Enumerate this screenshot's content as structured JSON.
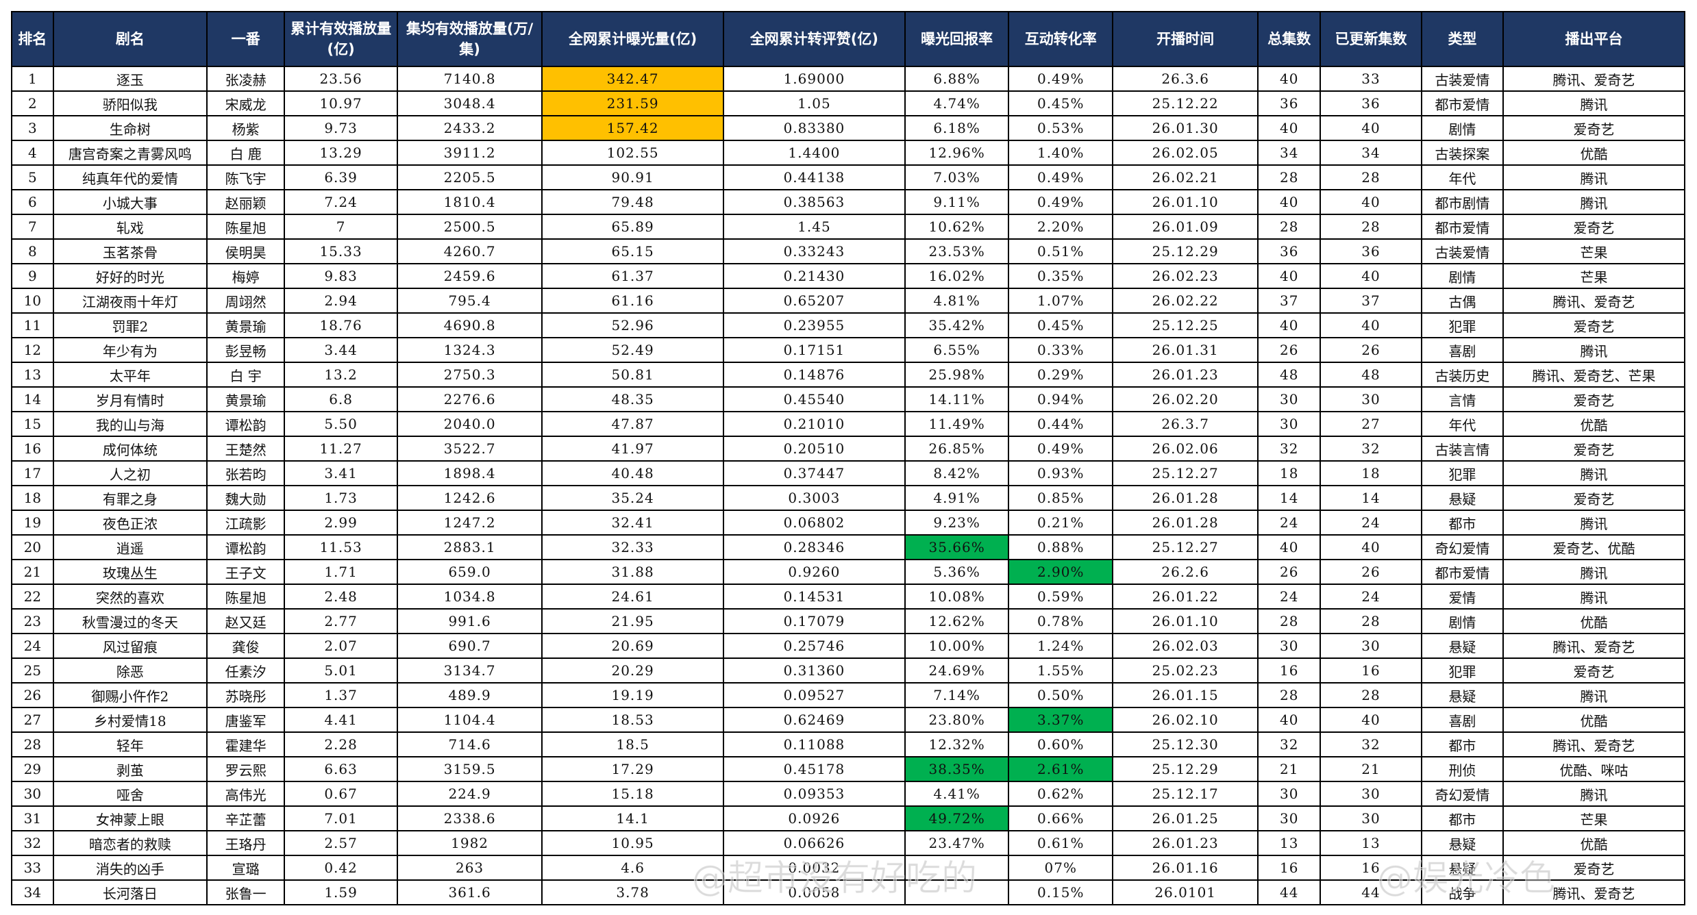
{
  "headers": [
    "排名",
    "剧名",
    "一番",
    "累计有效播放量(亿)",
    "集均有效播放量(万/集)",
    "全网累计曝光量(亿)",
    "全网累计转评赞(亿)",
    "曝光回报率",
    "互动转化率",
    "开播时间",
    "总集数",
    "已更新集数",
    "类型",
    "播出平台"
  ],
  "rows": [
    [
      "1",
      "逐玉",
      "张凌赫",
      "23.56",
      "7140.8",
      "342.47",
      "1.69000",
      "6.88%",
      "0.49%",
      "26.3.6",
      "40",
      "33",
      "古装爱情",
      "腾讯、爱奇艺"
    ],
    [
      "2",
      "骄阳似我",
      "宋威龙",
      "10.97",
      "3048.4",
      "231.59",
      "1.05",
      "4.74%",
      "0.45%",
      "25.12.22",
      "36",
      "36",
      "都市爱情",
      "腾讯"
    ],
    [
      "3",
      "生命树",
      "杨紫",
      "9.73",
      "2433.2",
      "157.42",
      "0.83380",
      "6.18%",
      "0.53%",
      "26.01.30",
      "40",
      "40",
      "剧情",
      "爱奇艺"
    ],
    [
      "4",
      "唐宫奇案之青雾风鸣",
      "白 鹿",
      "13.29",
      "3911.2",
      "102.55",
      "1.4400",
      "12.96%",
      "1.40%",
      "26.02.05",
      "34",
      "34",
      "古装探案",
      "优酷"
    ],
    [
      "5",
      "纯真年代的爱情",
      "陈飞宇",
      "6.39",
      "2205.5",
      "90.91",
      "0.44138",
      "7.03%",
      "0.49%",
      "26.02.21",
      "28",
      "28",
      "年代",
      "腾讯"
    ],
    [
      "6",
      "小城大事",
      "赵丽颖",
      "7.24",
      "1810.4",
      "79.48",
      "0.38563",
      "9.11%",
      "0.49%",
      "26.01.10",
      "40",
      "40",
      "都市剧情",
      "腾讯"
    ],
    [
      "7",
      "轧戏",
      "陈星旭",
      "7",
      "2500.5",
      "65.89",
      "1.45",
      "10.62%",
      "2.20%",
      "26.01.09",
      "28",
      "28",
      "都市爱情",
      "爱奇艺"
    ],
    [
      "8",
      "玉茗茶骨",
      "侯明昊",
      "15.33",
      "4260.7",
      "65.15",
      "0.33243",
      "23.53%",
      "0.51%",
      "25.12.29",
      "36",
      "36",
      "古装爱情",
      "芒果"
    ],
    [
      "9",
      "好好的时光",
      "梅婷",
      "9.83",
      "2459.6",
      "61.37",
      "0.21430",
      "16.02%",
      "0.35%",
      "26.02.23",
      "40",
      "40",
      "剧情",
      "芒果"
    ],
    [
      "10",
      "江湖夜雨十年灯",
      "周翊然",
      "2.94",
      "795.4",
      "61.16",
      "0.65207",
      "4.81%",
      "1.07%",
      "26.02.22",
      "37",
      "37",
      "古偶",
      "腾讯、爱奇艺"
    ],
    [
      "11",
      "罚罪2",
      "黄景瑜",
      "18.76",
      "4690.8",
      "52.96",
      "0.23955",
      "35.42%",
      "0.45%",
      "25.12.25",
      "40",
      "40",
      "犯罪",
      "爱奇艺"
    ],
    [
      "12",
      "年少有为",
      "彭昱畅",
      "3.44",
      "1324.3",
      "52.49",
      "0.17151",
      "6.55%",
      "0.33%",
      "26.01.31",
      "26",
      "26",
      "喜剧",
      "腾讯"
    ],
    [
      "13",
      "太平年",
      "白 宇",
      "13.2",
      "2750.3",
      "50.81",
      "0.14876",
      "25.98%",
      "0.29%",
      "26.01.23",
      "48",
      "48",
      "古装历史",
      "腾讯、爱奇艺、芒果"
    ],
    [
      "14",
      "岁月有情时",
      "黄景瑜",
      "6.8",
      "2276.6",
      "48.35",
      "0.45540",
      "14.11%",
      "0.94%",
      "26.02.20",
      "30",
      "30",
      "言情",
      "爱奇艺"
    ],
    [
      "15",
      "我的山与海",
      "谭松韵",
      "5.50",
      "2040.0",
      "47.87",
      "0.21010",
      "11.49%",
      "0.44%",
      "26.3.7",
      "30",
      "27",
      "年代",
      "优酷"
    ],
    [
      "16",
      "成何体统",
      "王楚然",
      "11.27",
      "3522.7",
      "41.97",
      "0.20510",
      "26.85%",
      "0.49%",
      "26.02.06",
      "32",
      "32",
      "古装言情",
      "爱奇艺"
    ],
    [
      "17",
      "人之初",
      "张若昀",
      "3.41",
      "1898.4",
      "40.48",
      "0.37447",
      "8.42%",
      "0.93%",
      "25.12.27",
      "18",
      "18",
      "犯罪",
      "腾讯"
    ],
    [
      "18",
      "有罪之身",
      "魏大勋",
      "1.73",
      "1242.6",
      "35.24",
      "0.3003",
      "4.91%",
      "0.85%",
      "26.01.28",
      "14",
      "14",
      "悬疑",
      "爱奇艺"
    ],
    [
      "19",
      "夜色正浓",
      "江疏影",
      "2.99",
      "1247.2",
      "32.41",
      "0.06802",
      "9.23%",
      "0.21%",
      "26.01.28",
      "24",
      "24",
      "都市",
      "腾讯"
    ],
    [
      "20",
      "逍遥",
      "谭松韵",
      "11.53",
      "2883.1",
      "32.33",
      "0.28346",
      "35.66%",
      "0.88%",
      "25.12.27",
      "40",
      "40",
      "奇幻爱情",
      "爱奇艺、优酷"
    ],
    [
      "21",
      "玫瑰丛生",
      "王子文",
      "1.71",
      "659.0",
      "31.88",
      "0.9260",
      "5.36%",
      "2.90%",
      "26.2.6",
      "26",
      "26",
      "都市爱情",
      "腾讯"
    ],
    [
      "22",
      "突然的喜欢",
      "陈星旭",
      "2.48",
      "1034.8",
      "24.61",
      "0.14531",
      "10.08%",
      "0.59%",
      "26.01.22",
      "24",
      "24",
      "爱情",
      "腾讯"
    ],
    [
      "23",
      "秋雪漫过的冬天",
      "赵又廷",
      "2.77",
      "991.6",
      "21.95",
      "0.17079",
      "12.62%",
      "0.78%",
      "26.01.10",
      "28",
      "28",
      "剧情",
      "优酷"
    ],
    [
      "24",
      "风过留痕",
      "龚俊",
      "2.07",
      "690.7",
      "20.69",
      "0.25746",
      "10.00%",
      "1.24%",
      "26.02.03",
      "30",
      "30",
      "悬疑",
      "腾讯、爱奇艺"
    ],
    [
      "25",
      "除恶",
      "任素汐",
      "5.01",
      "3134.7",
      "20.29",
      "0.31360",
      "24.69%",
      "1.55%",
      "25.02.23",
      "16",
      "16",
      "犯罪",
      "爱奇艺"
    ],
    [
      "26",
      "御赐小仵作2",
      "苏晓彤",
      "1.37",
      "489.9",
      "19.19",
      "0.09527",
      "7.14%",
      "0.50%",
      "26.01.15",
      "28",
      "28",
      "悬疑",
      "腾讯"
    ],
    [
      "27",
      "乡村爱情18",
      "唐鉴军",
      "4.41",
      "1104.4",
      "18.53",
      "0.62469",
      "23.80%",
      "3.37%",
      "26.02.10",
      "40",
      "40",
      "喜剧",
      "优酷"
    ],
    [
      "28",
      "轻年",
      "霍建华",
      "2.28",
      "714.6",
      "18.5",
      "0.11088",
      "12.32%",
      "0.60%",
      "25.12.30",
      "32",
      "32",
      "都市",
      "腾讯、爱奇艺"
    ],
    [
      "29",
      "剥茧",
      "罗云熙",
      "6.63",
      "3159.5",
      "17.29",
      "0.45178",
      "38.35%",
      "2.61%",
      "25.12.29",
      "21",
      "21",
      "刑侦",
      "优酷、咪咕"
    ],
    [
      "30",
      "哑舍",
      "高伟光",
      "0.67",
      "224.9",
      "15.18",
      "0.09353",
      "4.41%",
      "0.62%",
      "25.12.17",
      "30",
      "30",
      "奇幻爱情",
      "腾讯"
    ],
    [
      "31",
      "女神蒙上眼",
      "辛芷蕾",
      "7.01",
      "2338.6",
      "14.1",
      "0.0926",
      "49.72%",
      "0.66%",
      "26.01.25",
      "30",
      "30",
      "都市",
      "芒果"
    ],
    [
      "32",
      "暗恋者的救赎",
      "王珞丹",
      "2.57",
      "1982",
      "10.95",
      "0.06626",
      "23.47%",
      "0.61%",
      "26.01.23",
      "13",
      "13",
      "悬疑",
      "优酷"
    ],
    [
      "33",
      "消失的凶手",
      "宣璐",
      "0.42",
      "263",
      "4.6",
      "0.0032",
      "",
      "07%",
      "26.01.16",
      "16",
      "16",
      "悬疑",
      "爱奇艺"
    ],
    [
      "34",
      "长河落日",
      "张鲁一",
      "1.59",
      "361.6",
      "3.78",
      "0.0058",
      "",
      "0.15%",
      "26.0101",
      "44",
      "44",
      "战争",
      "腾讯、爱奇艺"
    ]
  ],
  "highlights": {
    "gold": [
      [
        0,
        5
      ],
      [
        1,
        5
      ],
      [
        2,
        5
      ]
    ],
    "green": [
      [
        19,
        7
      ],
      [
        20,
        8
      ],
      [
        26,
        8
      ],
      [
        28,
        7
      ],
      [
        28,
        8
      ],
      [
        30,
        7
      ]
    ]
  },
  "colors": {
    "header_bg": "#1f3864",
    "gold": "#ffc000",
    "green": "#00b050"
  },
  "watermark": {
    "left": "@超市没有好吃的",
    "right": "@娱光冷色"
  }
}
